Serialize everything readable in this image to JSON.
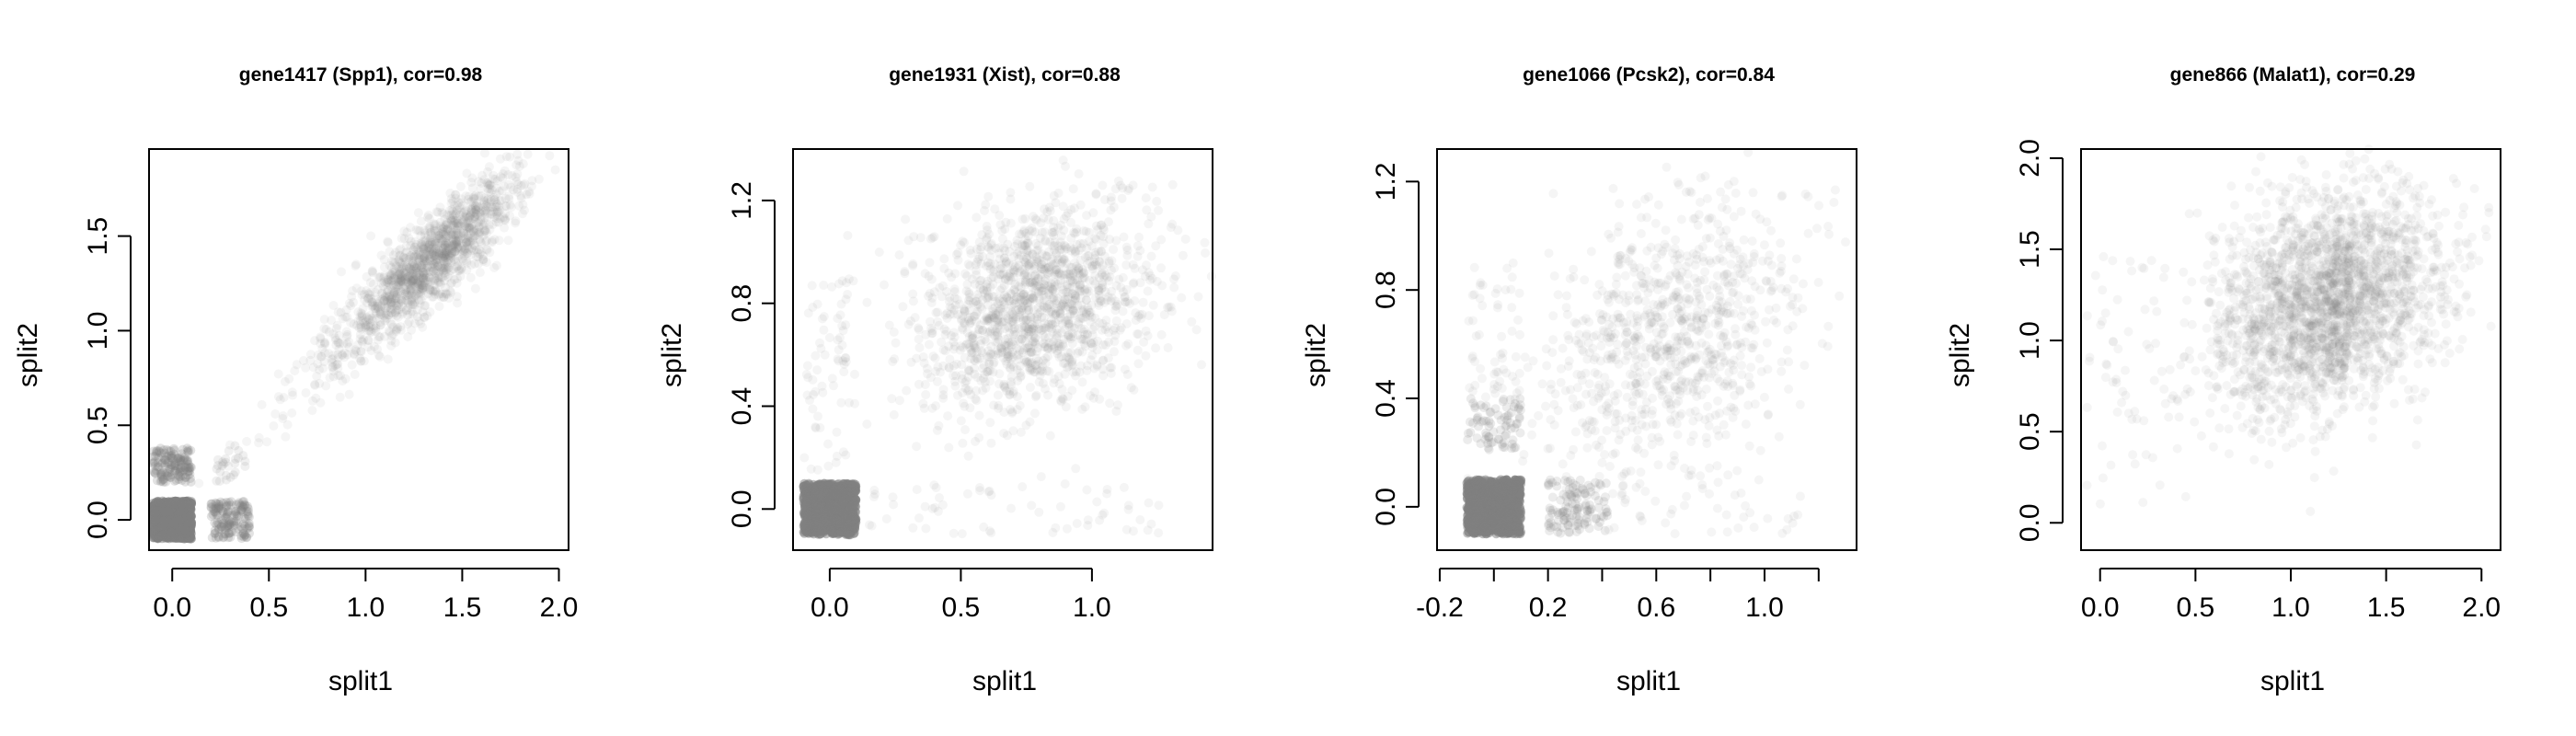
{
  "figure": {
    "point_color": "#808080",
    "axis_color": "#000000",
    "background": "#ffffff"
  },
  "chart_data": [
    {
      "type": "scatter",
      "title": "gene1417 (Spp1), cor=0.98",
      "xlabel": "split1",
      "ylabel": "split2",
      "xlim": [
        -0.12,
        2.05
      ],
      "ylim": [
        -0.16,
        1.96
      ],
      "xticks": [
        0.0,
        0.5,
        1.0,
        1.5,
        2.0
      ],
      "xtick_labels": [
        "0.0",
        "0.5",
        "1.0",
        "1.5",
        "2.0"
      ],
      "yticks": [
        0.0,
        0.5,
        1.0,
        1.5
      ],
      "ytick_labels": [
        "0.0",
        "0.5",
        "1.0",
        "1.5"
      ],
      "grid": false,
      "clusters": [
        {
          "kind": "box",
          "x": [
            -0.1,
            0.1
          ],
          "y": [
            -0.1,
            0.1
          ],
          "n": 900,
          "opacity": 0.5
        },
        {
          "kind": "box",
          "x": [
            -0.1,
            0.1
          ],
          "y": [
            0.2,
            0.38
          ],
          "n": 140,
          "opacity": 0.22
        },
        {
          "kind": "box",
          "x": [
            0.2,
            0.4
          ],
          "y": [
            -0.1,
            0.1
          ],
          "n": 140,
          "opacity": 0.22
        },
        {
          "kind": "box",
          "x": [
            0.2,
            0.4
          ],
          "y": [
            0.2,
            0.4
          ],
          "n": 25,
          "opacity": 0.12
        },
        {
          "kind": "gauss",
          "mx": 1.35,
          "my": 1.38,
          "sx": 0.22,
          "sy": 0.22,
          "rho": 0.85,
          "n": 1300,
          "opacity": 0.08
        },
        {
          "kind": "gauss",
          "mx": 0.9,
          "my": 0.9,
          "sx": 0.25,
          "sy": 0.25,
          "rho": 0.9,
          "n": 150,
          "opacity": 0.08
        }
      ]
    },
    {
      "type": "scatter",
      "title": "gene1931 (Xist), cor=0.88",
      "xlabel": "split1",
      "ylabel": "split2",
      "xlim": [
        -0.14,
        1.46
      ],
      "ylim": [
        -0.16,
        1.4
      ],
      "xticks": [
        0.0,
        0.5,
        1.0
      ],
      "xtick_labels": [
        "0.0",
        "0.5",
        "1.0"
      ],
      "yticks": [
        0.0,
        0.4,
        0.8,
        1.2
      ],
      "ytick_labels": [
        "0.0",
        "0.4",
        "0.8",
        "1.2"
      ],
      "grid": false,
      "clusters": [
        {
          "kind": "box",
          "x": [
            -0.1,
            0.1
          ],
          "y": [
            -0.1,
            0.1
          ],
          "n": 900,
          "opacity": 0.5
        },
        {
          "kind": "box",
          "x": [
            -0.1,
            0.1
          ],
          "y": [
            0.15,
            0.9
          ],
          "n": 70,
          "opacity": 0.08
        },
        {
          "kind": "box",
          "x": [
            0.15,
            1.3
          ],
          "y": [
            -0.1,
            0.1
          ],
          "n": 60,
          "opacity": 0.08
        },
        {
          "kind": "gauss",
          "mx": 0.78,
          "my": 0.78,
          "sx": 0.22,
          "sy": 0.2,
          "rho": 0.25,
          "n": 1500,
          "opacity": 0.08
        }
      ]
    },
    {
      "type": "scatter",
      "title": "gene1066 (Pcsk2), cor=0.84",
      "xlabel": "split1",
      "ylabel": "split2",
      "xlim": [
        -0.21,
        1.34
      ],
      "ylim": [
        -0.16,
        1.32
      ],
      "xticks": [
        -0.2,
        0.2,
        0.6,
        1.0
      ],
      "xtick_labels": [
        "-0.2",
        "0.2",
        "0.6",
        "1.0"
      ],
      "xminor_ticks": [
        0.0,
        0.4,
        0.8,
        1.2
      ],
      "yticks": [
        0.0,
        0.4,
        0.8,
        1.2
      ],
      "ytick_labels": [
        "0.0",
        "0.4",
        "0.8",
        "1.2"
      ],
      "grid": false,
      "clusters": [
        {
          "kind": "box",
          "x": [
            -0.1,
            0.1
          ],
          "y": [
            -0.1,
            0.1
          ],
          "n": 900,
          "opacity": 0.5
        },
        {
          "kind": "box",
          "x": [
            -0.1,
            0.1
          ],
          "y": [
            0.2,
            0.4
          ],
          "n": 80,
          "opacity": 0.15
        },
        {
          "kind": "box",
          "x": [
            -0.1,
            0.1
          ],
          "y": [
            0.4,
            0.9
          ],
          "n": 50,
          "opacity": 0.08
        },
        {
          "kind": "box",
          "x": [
            0.2,
            0.42
          ],
          "y": [
            -0.1,
            0.1
          ],
          "n": 120,
          "opacity": 0.15
        },
        {
          "kind": "box",
          "x": [
            0.42,
            1.15
          ],
          "y": [
            -0.1,
            0.1
          ],
          "n": 40,
          "opacity": 0.08
        },
        {
          "kind": "gauss",
          "mx": 0.65,
          "my": 0.62,
          "sx": 0.25,
          "sy": 0.25,
          "rho": 0.35,
          "n": 900,
          "opacity": 0.08
        }
      ]
    },
    {
      "type": "scatter",
      "title": "gene866 (Malat1), cor=0.29",
      "xlabel": "split1",
      "ylabel": "split2",
      "xlim": [
        -0.1,
        2.1
      ],
      "ylim": [
        -0.15,
        2.05
      ],
      "xticks": [
        0.0,
        0.5,
        1.0,
        1.5,
        2.0
      ],
      "xtick_labels": [
        "0.0",
        "0.5",
        "1.0",
        "1.5",
        "2.0"
      ],
      "yticks": [
        0.0,
        0.5,
        1.0,
        1.5,
        2.0
      ],
      "ytick_labels": [
        "0.0",
        "0.5",
        "1.0",
        "1.5",
        "2.0"
      ],
      "grid": false,
      "clusters": [
        {
          "kind": "gauss",
          "mx": 1.2,
          "my": 1.22,
          "sx": 0.3,
          "sy": 0.3,
          "rho": 0.25,
          "n": 2300,
          "opacity": 0.08
        },
        {
          "kind": "box",
          "x": [
            -0.08,
            0.45
          ],
          "y": [
            0.1,
            1.5
          ],
          "n": 60,
          "opacity": 0.08
        }
      ]
    }
  ]
}
